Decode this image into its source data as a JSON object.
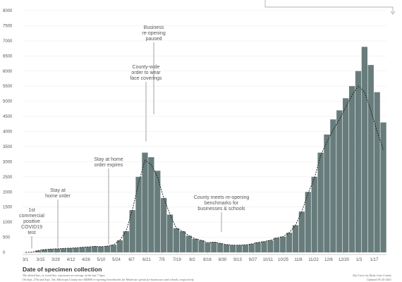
{
  "chart_data": {
    "type": "bar",
    "xlabel": "Date of specimen collection",
    "ylim": [
      0,
      8000
    ],
    "y_ticks": [
      0,
      500,
      1000,
      1500,
      2000,
      2500,
      3000,
      3500,
      4000,
      4500,
      5000,
      5500,
      6000,
      6500,
      7000,
      7500,
      8000
    ],
    "x_ticks": [
      "3/1",
      "3/15",
      "3/29",
      "4/12",
      "4/26",
      "5/10",
      "5/24",
      "6/7",
      "6/21",
      "7/5",
      "7/19",
      "8/2",
      "8/16",
      "8/30",
      "9/13",
      "9/27",
      "10/11",
      "10/25",
      "11/8",
      "11/22",
      "12/6",
      "12/20",
      "1/3",
      "1/17"
    ],
    "bar_color": "#687c7c",
    "trend_color": "#222222",
    "weekly_values": [
      2,
      5,
      60,
      95,
      110,
      120,
      130,
      140,
      150,
      170,
      180,
      200,
      190,
      210,
      250,
      400,
      700,
      1400,
      2500,
      3300,
      3150,
      2700,
      1800,
      1250,
      800,
      700,
      550,
      450,
      400,
      320,
      340,
      300,
      260,
      240,
      240,
      250,
      280,
      330,
      360,
      400,
      480,
      520,
      650,
      900,
      1350,
      2000,
      2500,
      3300,
      3900,
      4400,
      4700,
      5100,
      5500,
      6000,
      6800,
      6200,
      5300,
      4300
    ],
    "trend_values": [
      2,
      5,
      60,
      95,
      110,
      120,
      130,
      140,
      150,
      170,
      180,
      200,
      190,
      210,
      250,
      400,
      700,
      1400,
      2300,
      3050,
      2900,
      2500,
      1800,
      1250,
      800,
      700,
      550,
      450,
      400,
      320,
      340,
      300,
      260,
      240,
      240,
      250,
      280,
      330,
      360,
      400,
      480,
      520,
      650,
      900,
      1350,
      1950,
      2450,
      3200,
      3650,
      4050,
      4400,
      4800,
      5200,
      5500,
      5300,
      4700,
      4000,
      3400
    ],
    "annotations": [
      {
        "id": "a1",
        "lines": [
          "1st",
          "commercial",
          "positive",
          "COVID19",
          "test"
        ],
        "date_index": 2,
        "value": 60
      },
      {
        "id": "a2",
        "lines": [
          "Stay at",
          "home order"
        ],
        "date_index": 4,
        "value": 90
      },
      {
        "id": "a3",
        "lines": [
          "Stay at home",
          "order expires"
        ],
        "date_index": 10,
        "value": 190
      },
      {
        "id": "a4",
        "lines": [
          "County-wide",
          "order to wear",
          "face coverings"
        ],
        "date_index": 17,
        "value": 3600
      },
      {
        "id": "a5",
        "lines": [
          "Business",
          "re-opening",
          "paused"
        ],
        "date_index": 19,
        "value": 4500
      },
      {
        "id": "a6",
        "lines": [
          "County meets re-opening",
          "benchmarks for",
          "businesses & schools"
        ],
        "date_index": 26,
        "value": 600
      }
    ]
  },
  "footer": {
    "note1": "The dotted line, or trend line, represents an average of the last 7 days.",
    "note2": "On Sept. 27th and Sept. 3rd, Maricopa County met AZDHS re-opening benchmarks for Moderate spread for businesses and schools, respectively.",
    "credit1": "Epi Curve by Daily Case Counts",
    "credit2": "Updated 01-25-2021"
  }
}
